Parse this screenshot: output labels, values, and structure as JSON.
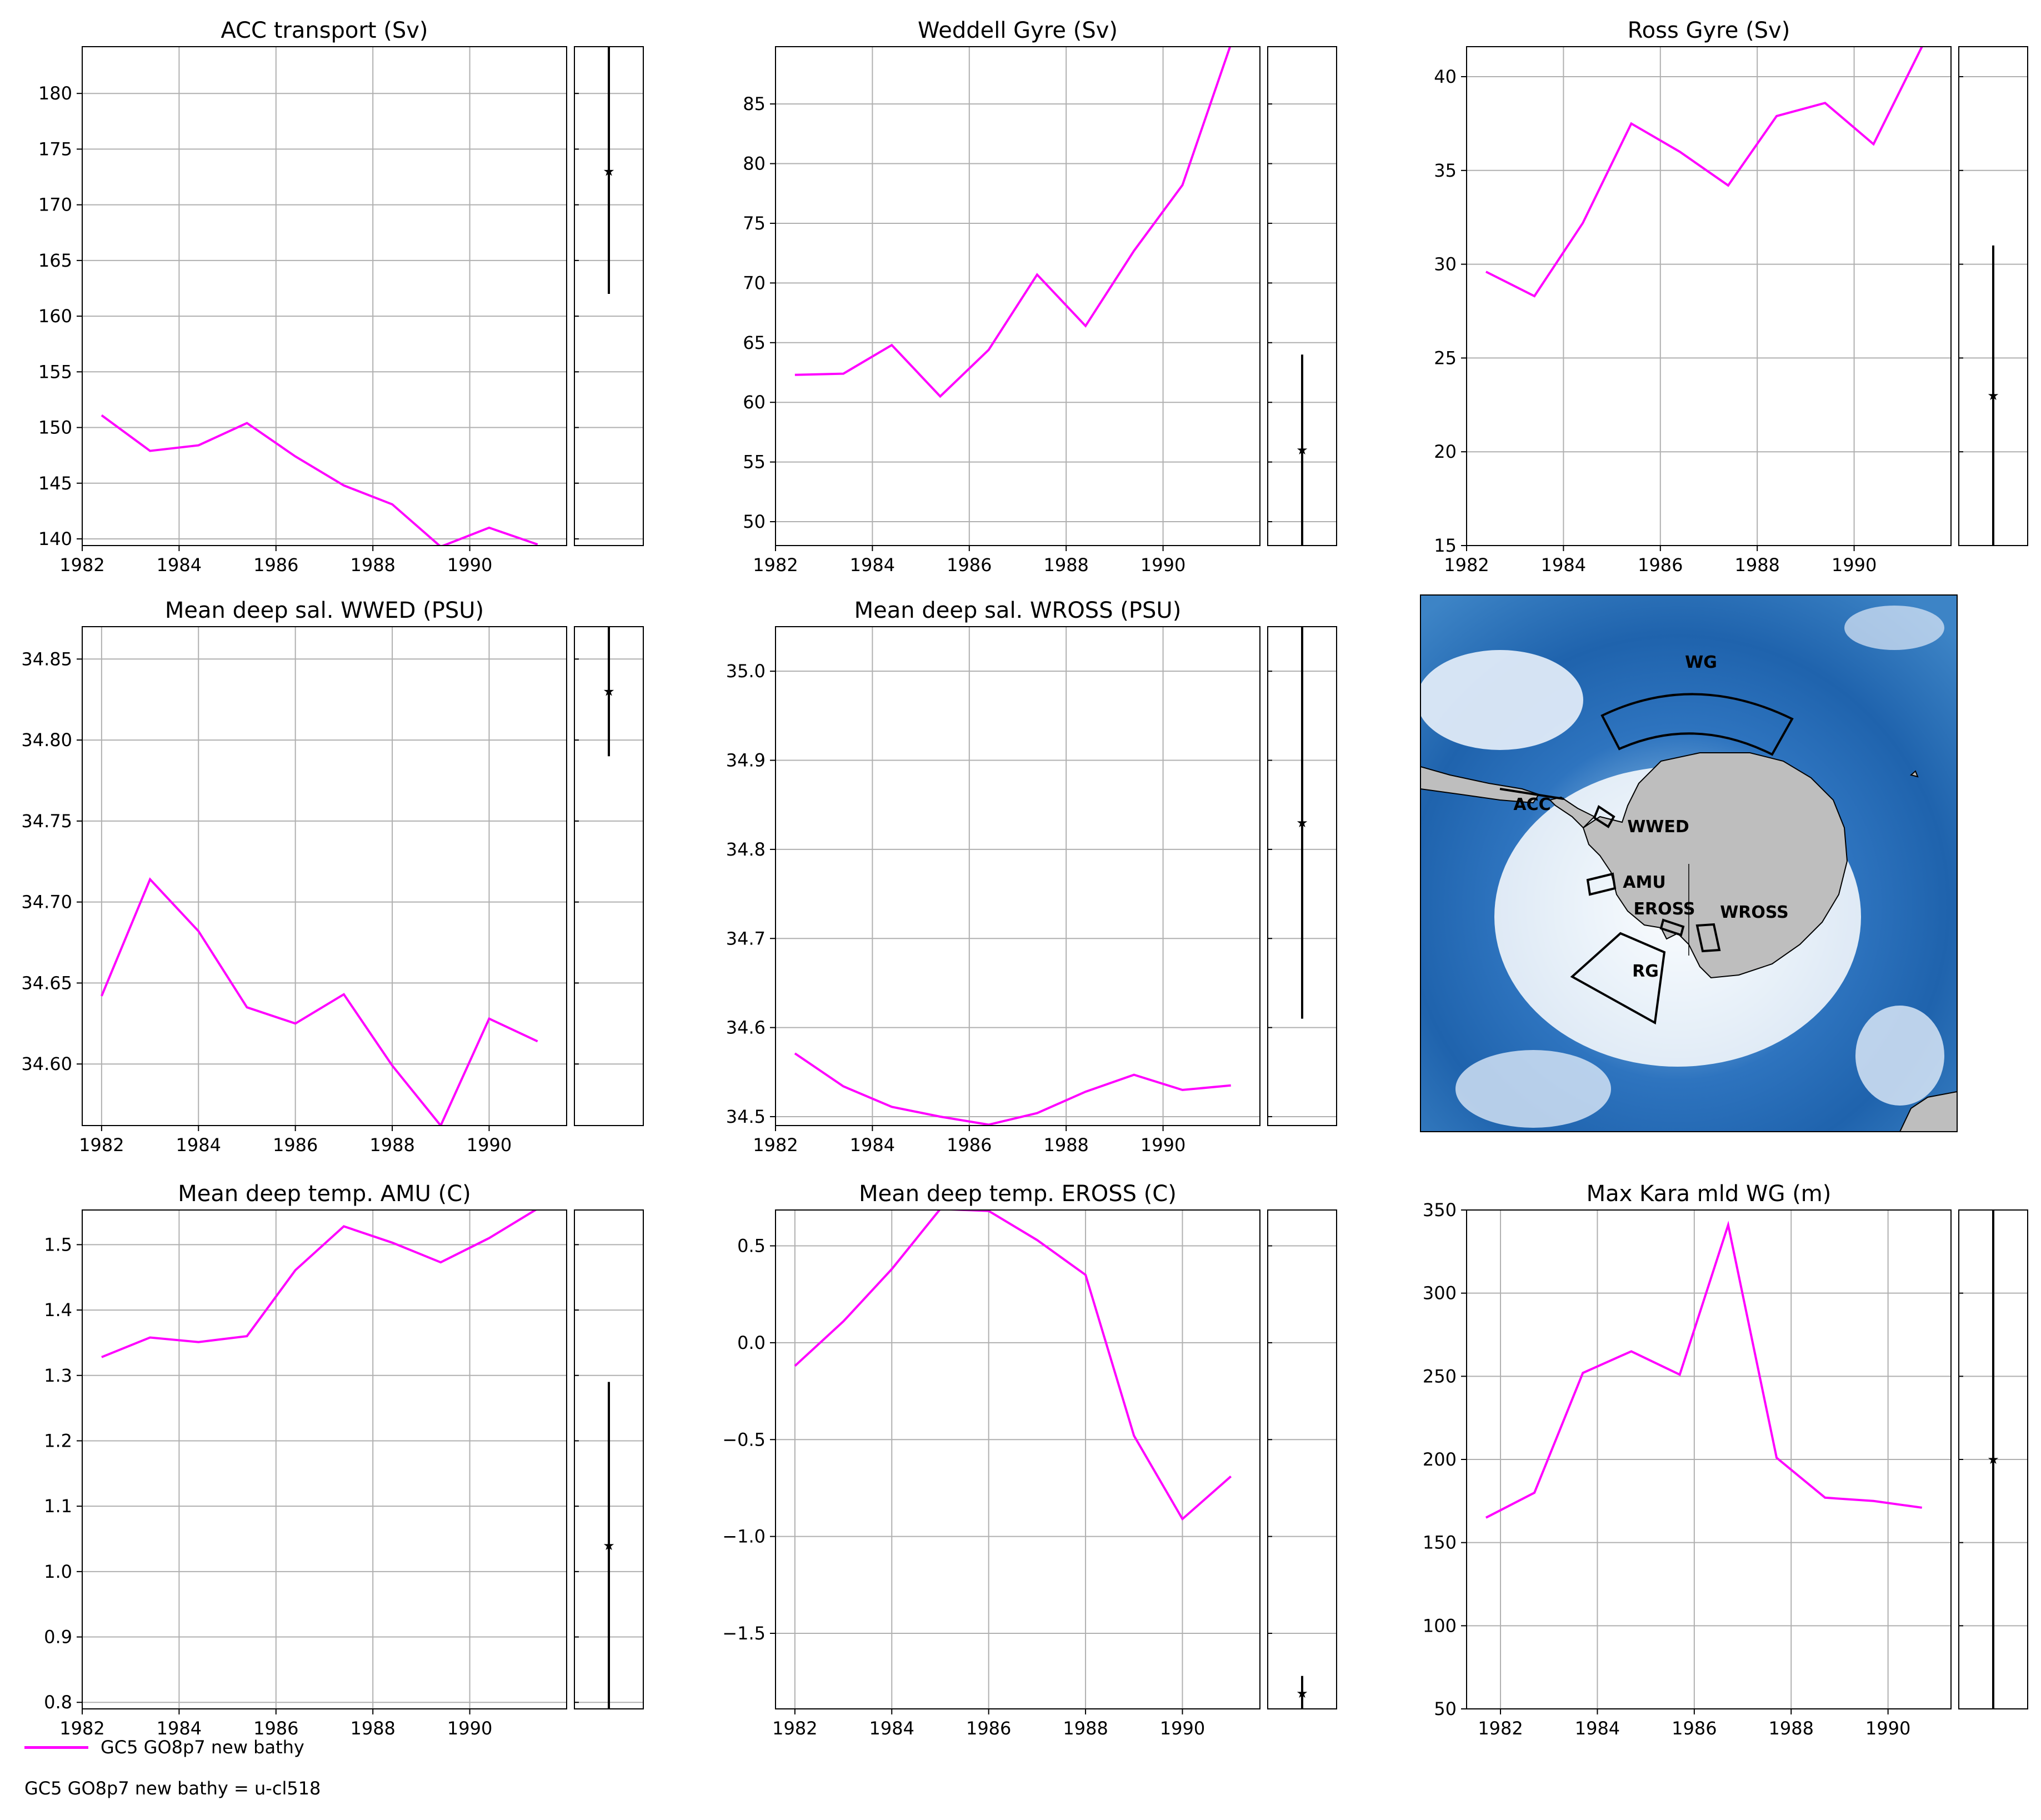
{
  "legend": {
    "series_name": "GC5 GO8p7 new bathy",
    "color": "#ff00ff"
  },
  "footnote": "GC5 GO8p7 new bathy = u-cl518",
  "chart_data": [
    {
      "type": "line",
      "title": "ACC transport (Sv)",
      "xlim": [
        1982,
        1992
      ],
      "xticks": [
        1982,
        1984,
        1986,
        1988,
        1990
      ],
      "ylim": [
        139.4,
        184.2
      ],
      "yticks": [
        140,
        145,
        150,
        155,
        160,
        165,
        170,
        175,
        180
      ],
      "series": [
        {
          "name": "GC5 GO8p7 new bathy",
          "x": [
            1982.4,
            1983.4,
            1984.4,
            1985.4,
            1986.4,
            1987.4,
            1988.4,
            1989.4,
            1990.4,
            1991.4
          ],
          "y": [
            151.1,
            147.9,
            148.4,
            150.4,
            147.4,
            144.8,
            143.1,
            139.3,
            141.0,
            139.5
          ]
        }
      ],
      "obs": {
        "value": 173,
        "low": 162,
        "high": 185
      }
    },
    {
      "type": "line",
      "title": "Weddell Gyre (Sv)",
      "xlim": [
        1982,
        1992
      ],
      "xticks": [
        1982,
        1984,
        1986,
        1988,
        1990
      ],
      "ylim": [
        48.0,
        89.8
      ],
      "yticks": [
        50,
        55,
        60,
        65,
        70,
        75,
        80,
        85
      ],
      "series": [
        {
          "name": "GC5 GO8p7 new bathy",
          "x": [
            1982.4,
            1983.4,
            1984.4,
            1985.4,
            1986.4,
            1987.4,
            1988.4,
            1989.4,
            1990.4,
            1991.4
          ],
          "y": [
            62.3,
            62.4,
            64.8,
            60.5,
            64.4,
            70.7,
            66.4,
            72.7,
            78.2,
            90.0
          ]
        }
      ],
      "obs": {
        "value": 56,
        "low": 47,
        "high": 64
      }
    },
    {
      "type": "line",
      "title": "Ross Gyre (Sv)",
      "xlim": [
        1982,
        1992
      ],
      "xticks": [
        1982,
        1984,
        1986,
        1988,
        1990
      ],
      "ylim": [
        15.0,
        41.6
      ],
      "yticks": [
        15,
        20,
        25,
        30,
        35,
        40
      ],
      "series": [
        {
          "name": "GC5 GO8p7 new bathy",
          "x": [
            1982.4,
            1983.4,
            1984.4,
            1985.4,
            1986.4,
            1987.4,
            1988.4,
            1989.4,
            1990.4,
            1991.4
          ],
          "y": [
            29.6,
            28.3,
            32.2,
            37.5,
            36.0,
            34.2,
            37.9,
            38.6,
            36.4,
            41.6
          ]
        }
      ],
      "obs": {
        "value": 23,
        "low": 14,
        "high": 31
      }
    },
    {
      "type": "line",
      "title": "Mean deep sal. WWED  (PSU)",
      "xlim": [
        1981.6,
        1991.6
      ],
      "xticks": [
        1982,
        1984,
        1986,
        1988,
        1990
      ],
      "ylim": [
        34.562,
        34.87
      ],
      "yticks": [
        34.6,
        34.65,
        34.7,
        34.75,
        34.8,
        34.85
      ],
      "series": [
        {
          "name": "GC5 GO8p7 new bathy",
          "x": [
            1982,
            1983,
            1984,
            1985,
            1986,
            1987,
            1988,
            1989,
            1990,
            1991
          ],
          "y": [
            34.642,
            34.714,
            34.682,
            34.635,
            34.625,
            34.643,
            34.599,
            34.562,
            34.628,
            34.614
          ]
        }
      ],
      "obs": {
        "value": 34.83,
        "low": 34.79,
        "high": 34.88
      }
    },
    {
      "type": "line",
      "title": "Mean deep sal. WROSS (PSU)",
      "xlim": [
        1982,
        1992
      ],
      "xticks": [
        1982,
        1984,
        1986,
        1988,
        1990
      ],
      "ylim": [
        34.49,
        35.05
      ],
      "yticks": [
        34.5,
        34.6,
        34.7,
        34.8,
        34.9,
        35.0
      ],
      "series": [
        {
          "name": "GC5 GO8p7 new bathy",
          "x": [
            1982.4,
            1983.4,
            1984.4,
            1985.4,
            1986.4,
            1987.4,
            1988.4,
            1989.4,
            1990.4,
            1991.4
          ],
          "y": [
            34.571,
            34.534,
            34.511,
            34.5,
            34.491,
            34.504,
            34.528,
            34.547,
            34.53,
            34.535
          ]
        }
      ],
      "obs": {
        "value": 34.83,
        "low": 34.61,
        "high": 35.06
      }
    },
    {
      "type": "line",
      "title": "Mean deep temp. AMU (C)",
      "xlim": [
        1982,
        1992
      ],
      "xticks": [
        1982,
        1984,
        1986,
        1988,
        1990
      ],
      "ylim": [
        0.79,
        1.553
      ],
      "yticks": [
        0.8,
        0.9,
        1.0,
        1.1,
        1.2,
        1.3,
        1.4,
        1.5
      ],
      "series": [
        {
          "name": "GC5 GO8p7 new bathy",
          "x": [
            1982.4,
            1983.4,
            1984.4,
            1985.4,
            1986.4,
            1987.4,
            1988.4,
            1989.4,
            1990.4,
            1991.4
          ],
          "y": [
            1.328,
            1.358,
            1.351,
            1.36,
            1.461,
            1.528,
            1.503,
            1.473,
            1.51,
            1.555
          ]
        }
      ],
      "obs": {
        "value": 1.04,
        "low": 0.78,
        "high": 1.29
      }
    },
    {
      "type": "line",
      "title": "Mean deep temp. EROSS (C)",
      "xlim": [
        1981.6,
        1991.6
      ],
      "xticks": [
        1982,
        1984,
        1986,
        1988,
        1990
      ],
      "ylim": [
        -1.89,
        0.685
      ],
      "yticks": [
        -1.5,
        -1.0,
        -0.5,
        0.0,
        0.5
      ],
      "series": [
        {
          "name": "GC5 GO8p7 new bathy",
          "x": [
            1982,
            1983,
            1984,
            1985,
            1986,
            1987,
            1988,
            1989,
            1990,
            1991
          ],
          "y": [
            -0.12,
            0.11,
            0.38,
            0.69,
            0.68,
            0.53,
            0.35,
            -0.48,
            -0.91,
            -0.69
          ]
        }
      ],
      "obs": {
        "value": -1.81,
        "low": -1.9,
        "high": -1.72
      }
    },
    {
      "type": "line",
      "title": "Max Kara mld WG (m)",
      "xlim": [
        1981.3,
        1991.3
      ],
      "xticks": [
        1982,
        1984,
        1986,
        1988,
        1990
      ],
      "ylim": [
        50,
        350
      ],
      "yticks": [
        50,
        100,
        150,
        200,
        250,
        300,
        350
      ],
      "series": [
        {
          "name": "GC5 GO8p7 new bathy",
          "x": [
            1981.7,
            1982.7,
            1983.7,
            1984.7,
            1985.7,
            1986.7,
            1987.7,
            1988.7,
            1989.7,
            1990.7
          ],
          "y": [
            165,
            180,
            252,
            265,
            251,
            341,
            201,
            177,
            175,
            171
          ]
        }
      ],
      "obs": {
        "value": 200,
        "low": 49,
        "high": 351
      }
    }
  ],
  "map": {
    "land_color": "#bebebe",
    "ocean_deep": "#1f63ad",
    "ocean_shallow": "#eaf2fb",
    "regions": [
      "WG",
      "ACC",
      "WWED",
      "AMU",
      "EROSS",
      "WROSS",
      "RG"
    ]
  }
}
